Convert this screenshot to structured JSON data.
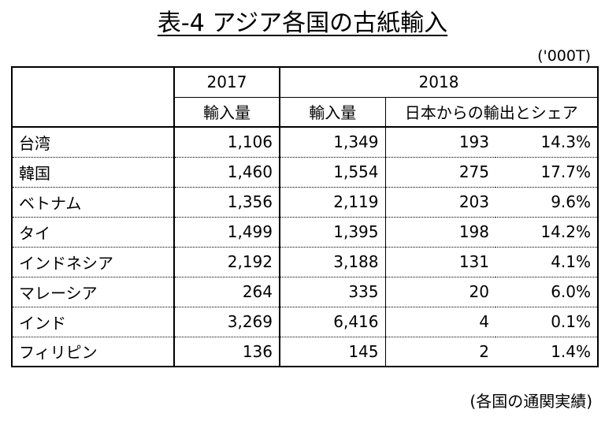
{
  "title": "表-4 アジア各国の古紙輸入",
  "unit": "('000T)",
  "header": {
    "year1": "2017",
    "year2": "2018",
    "col1": "輸入量",
    "col2": "輸入量",
    "col3": "日本からの輸出とシェア"
  },
  "rows": [
    {
      "country": "台湾",
      "imp2017": "1,106",
      "imp2018": "1,349",
      "japan": "193",
      "share": "14.3%"
    },
    {
      "country": "韓国",
      "imp2017": "1,460",
      "imp2018": "1,554",
      "japan": "275",
      "share": "17.7%"
    },
    {
      "country": "ベトナム",
      "imp2017": "1,356",
      "imp2018": "2,119",
      "japan": "203",
      "share": "9.6%"
    },
    {
      "country": "タイ",
      "imp2017": "1,499",
      "imp2018": "1,395",
      "japan": "198",
      "share": "14.2%"
    },
    {
      "country": "インドネシア",
      "imp2017": "2,192",
      "imp2018": "3,188",
      "japan": "131",
      "share": "4.1%"
    },
    {
      "country": "マレーシア",
      "imp2017": "264",
      "imp2018": "335",
      "japan": "20",
      "share": "6.0%"
    },
    {
      "country": "インド",
      "imp2017": "3,269",
      "imp2018": "6,416",
      "japan": "4",
      "share": "0.1%"
    },
    {
      "country": "フィリピン",
      "imp2017": "136",
      "imp2018": "145",
      "japan": "2",
      "share": "1.4%"
    }
  ],
  "source": "(各国の通関実績)"
}
